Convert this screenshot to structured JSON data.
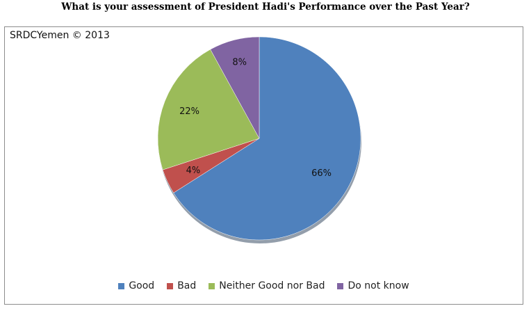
{
  "page": {
    "title": "What is your assessment of President Hadi's Performance over the Past Year?",
    "watermark": "SRDCYemen © 2013"
  },
  "chart_data": {
    "type": "pie",
    "title": "What is your assessment of President Hadi's Performance over the Past Year?",
    "categories": [
      "Good",
      "Bad",
      "Neither Good nor Bad",
      "Do not know"
    ],
    "values": [
      66,
      4,
      22,
      8
    ],
    "data_labels": [
      "66%",
      "4%",
      "22%",
      "8%"
    ],
    "colors": [
      "#4f81bd",
      "#c0504d",
      "#9bbb59",
      "#8064a2"
    ],
    "start": "top, clockwise",
    "legend_position": "bottom"
  }
}
